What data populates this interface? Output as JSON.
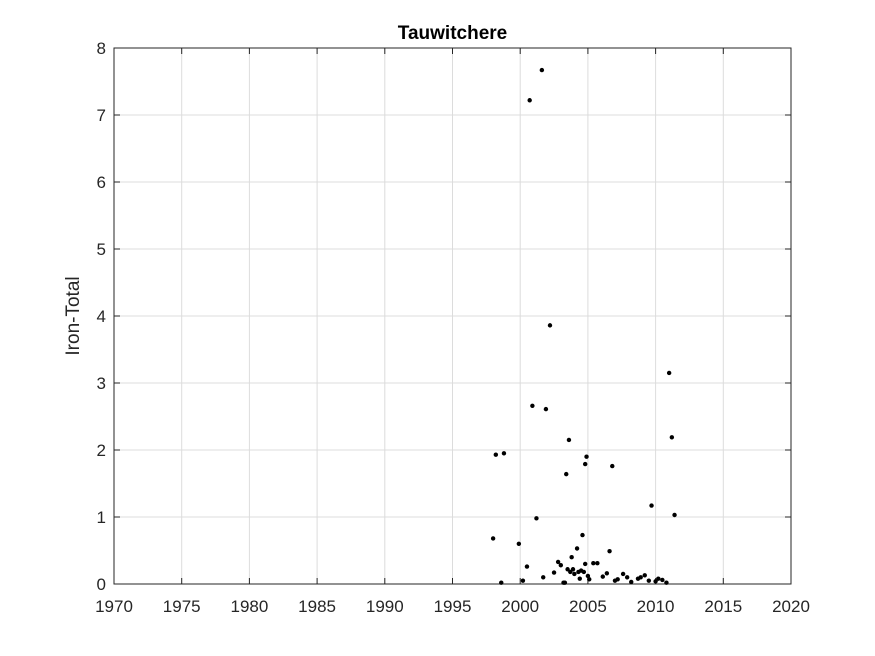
{
  "chart_data": {
    "type": "scatter",
    "title": "Tauwitchere",
    "xlabel": "",
    "ylabel": "Iron-Total",
    "xlim": [
      1970,
      2020
    ],
    "ylim": [
      0,
      8
    ],
    "xticks": [
      "1970",
      "1975",
      "1980",
      "1985",
      "1990",
      "1995",
      "2000",
      "2005",
      "2010",
      "2015",
      "2020"
    ],
    "yticks": [
      "0",
      "1",
      "2",
      "3",
      "4",
      "5",
      "6",
      "7",
      "8"
    ],
    "grid": true,
    "marker_color": "#000000",
    "series": [
      {
        "x": [
          1998.0,
          1998.2,
          1998.6,
          1998.8,
          1999.9,
          2000.2,
          2000.5,
          2000.7,
          2000.9,
          2001.2,
          2001.6,
          2001.7,
          2001.9,
          2002.2,
          2002.5,
          2002.8,
          2003.0,
          2003.2,
          2003.3,
          2003.4,
          2003.5,
          2003.6,
          2003.7,
          2003.8,
          2003.9,
          2004.0,
          2004.2,
          2004.3,
          2004.4,
          2004.5,
          2004.6,
          2004.7,
          2004.8,
          2004.8,
          2004.9,
          2005.0,
          2005.1,
          2005.4,
          2005.7,
          2006.1,
          2006.4,
          2006.6,
          2006.8,
          2007.0,
          2007.2,
          2007.6,
          2007.9,
          2008.2,
          2008.7,
          2008.9,
          2009.2,
          2009.5,
          2009.7,
          2010.0,
          2010.2,
          2010.5,
          2010.8,
          2011.0,
          2011.2,
          2011.4
        ],
        "y": [
          0.68,
          1.93,
          0.02,
          1.95,
          0.6,
          0.05,
          0.26,
          7.22,
          2.66,
          0.98,
          7.67,
          0.1,
          2.61,
          3.86,
          0.17,
          0.33,
          0.28,
          0.02,
          0.02,
          1.64,
          0.22,
          2.15,
          0.18,
          0.4,
          0.22,
          0.15,
          0.53,
          0.18,
          0.08,
          0.2,
          0.73,
          0.18,
          1.79,
          0.3,
          1.9,
          0.12,
          0.07,
          0.31,
          0.31,
          0.11,
          0.16,
          0.49,
          1.76,
          0.05,
          0.07,
          0.15,
          0.1,
          0.03,
          0.08,
          0.1,
          0.13,
          0.05,
          1.17,
          0.04,
          0.08,
          0.06,
          0.02,
          3.15,
          2.19,
          1.03
        ]
      }
    ]
  }
}
